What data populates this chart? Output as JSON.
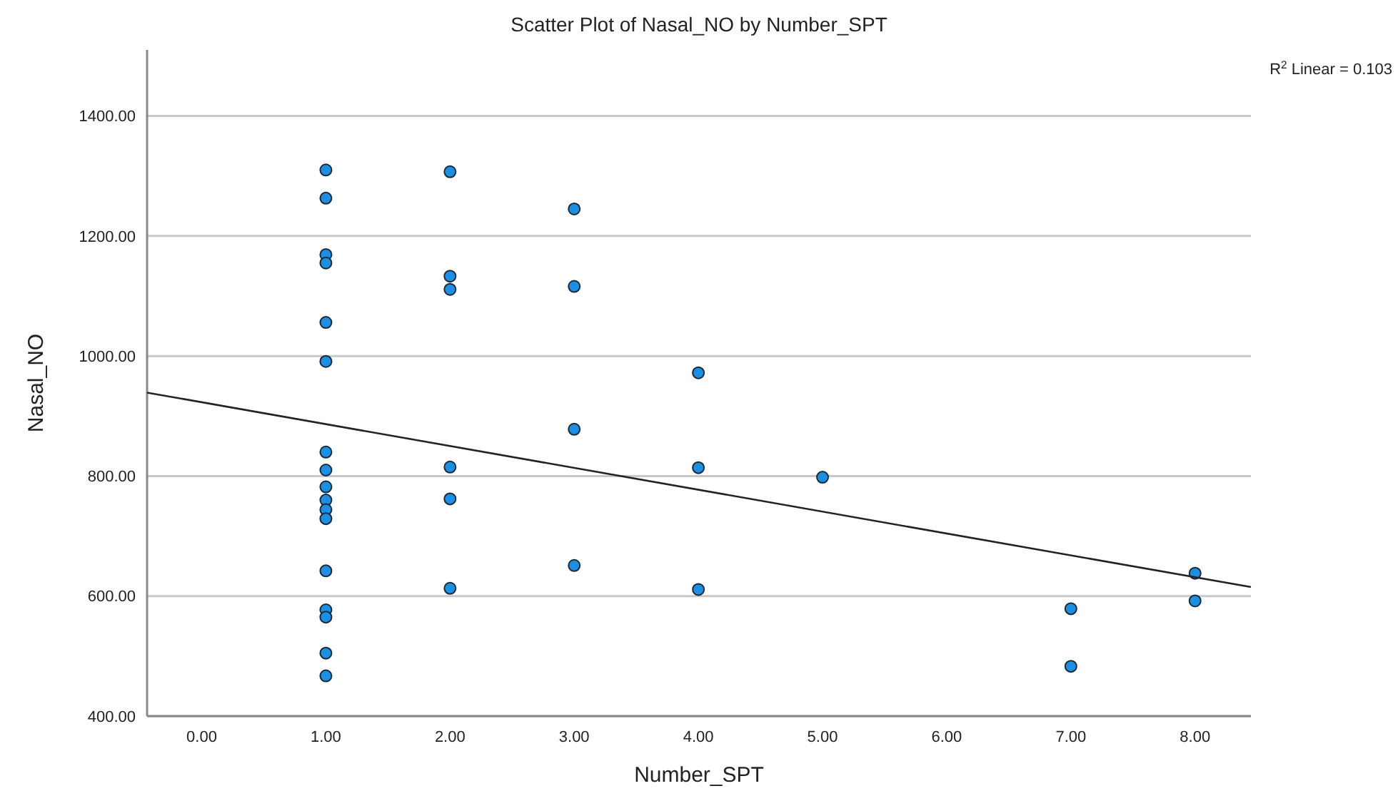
{
  "chart_data": {
    "type": "scatter",
    "title": "Scatter Plot of Nasal_NO by Number_SPT",
    "xlabel": "Number_SPT",
    "ylabel": "Nasal_NO",
    "annotations": [
      "R$^{2}$ Linear = 0.103"
    ],
    "xlim": [
      -0.44,
      8.45
    ],
    "ylim": [
      400,
      1510
    ],
    "xticks": [
      {
        "value": 0,
        "label": "0.00"
      },
      {
        "value": 1,
        "label": "1.00"
      },
      {
        "value": 2,
        "label": "2.00"
      },
      {
        "value": 3,
        "label": "3.00"
      },
      {
        "value": 4,
        "label": "4.00"
      },
      {
        "value": 5,
        "label": "5.00"
      },
      {
        "value": 6,
        "label": "6.00"
      },
      {
        "value": 7,
        "label": "7.00"
      },
      {
        "value": 8,
        "label": "8.00"
      }
    ],
    "yticks": [
      {
        "value": 400,
        "label": "400.00"
      },
      {
        "value": 600,
        "label": "600.00"
      },
      {
        "value": 800,
        "label": "800.00"
      },
      {
        "value": 1000,
        "label": "1000.00"
      },
      {
        "value": 1200,
        "label": "1200.00"
      },
      {
        "value": 1400,
        "label": "1400.00"
      }
    ],
    "grid": "y",
    "marker": "circle",
    "series": [
      {
        "color": "#1e8fe0",
        "x": [
          1,
          1,
          1,
          1,
          1,
          1,
          1,
          1,
          1,
          1,
          1,
          1,
          1,
          1,
          1,
          1,
          1,
          2,
          2,
          2,
          2,
          2,
          2,
          3,
          3,
          3,
          3,
          4,
          4,
          4,
          5,
          7,
          7,
          8,
          8
        ],
        "values": [
          1310,
          1263,
          1169,
          1155,
          1056,
          991,
          840,
          810,
          782,
          760,
          744,
          729,
          642,
          577,
          565,
          505,
          467,
          1307,
          1133,
          1111,
          815,
          762,
          613,
          1245,
          1116,
          878,
          651,
          972,
          814,
          611,
          798,
          579,
          483,
          638,
          592
        ]
      },
      {
        "type": "line",
        "color": "#222222",
        "line_style": "solid",
        "marker": "none",
        "x": [
          -0.44,
          8.45
        ],
        "values": [
          939,
          615
        ]
      }
    ]
  }
}
